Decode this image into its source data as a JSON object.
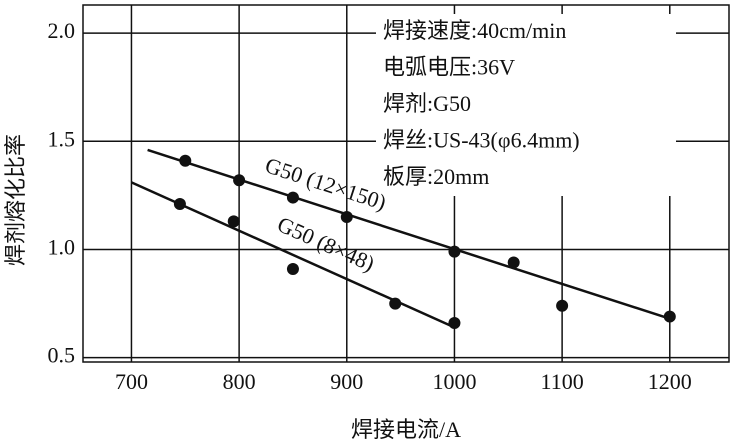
{
  "chart_data": {
    "type": "scatter",
    "xlabel": "焊接电流/A",
    "ylabel": "焊剂熔化比率",
    "xlim": [
      655,
      1255
    ],
    "ylim": [
      0.48,
      2.13
    ],
    "xticks": [
      700,
      800,
      900,
      1000,
      1100,
      1200
    ],
    "yticks": [
      0.5,
      {
        "value": 1,
        "label": "1.0"
      },
      1.5,
      {
        "value": 2,
        "label": "2.0"
      }
    ],
    "grid": true,
    "color": "#111111",
    "annotations": [
      "焊接速度:40cm/min",
      "电弧电压:36V",
      "焊剂:G50",
      "焊丝:US-43(φ6.4mm)",
      "板厚:20mm"
    ],
    "series": [
      {
        "name": "G50 (12×150)",
        "color": "#111111",
        "x": [
          750,
          800,
          850,
          900,
          1000,
          1055,
          1100,
          1200
        ],
        "values": [
          1.41,
          1.32,
          1.24,
          1.15,
          0.99,
          0.94,
          0.74,
          0.69
        ],
        "fit": {
          "x": [
            715,
            1200
          ],
          "values": [
            1.46,
            0.68
          ]
        }
      },
      {
        "name": "G50 (8×48)",
        "color": "#111111",
        "x": [
          745,
          795,
          850,
          945,
          1000
        ],
        "values": [
          1.21,
          1.13,
          0.91,
          0.75,
          0.66
        ],
        "fit": {
          "x": [
            700,
            1000
          ],
          "values": [
            1.31,
            0.64
          ]
        }
      }
    ]
  }
}
